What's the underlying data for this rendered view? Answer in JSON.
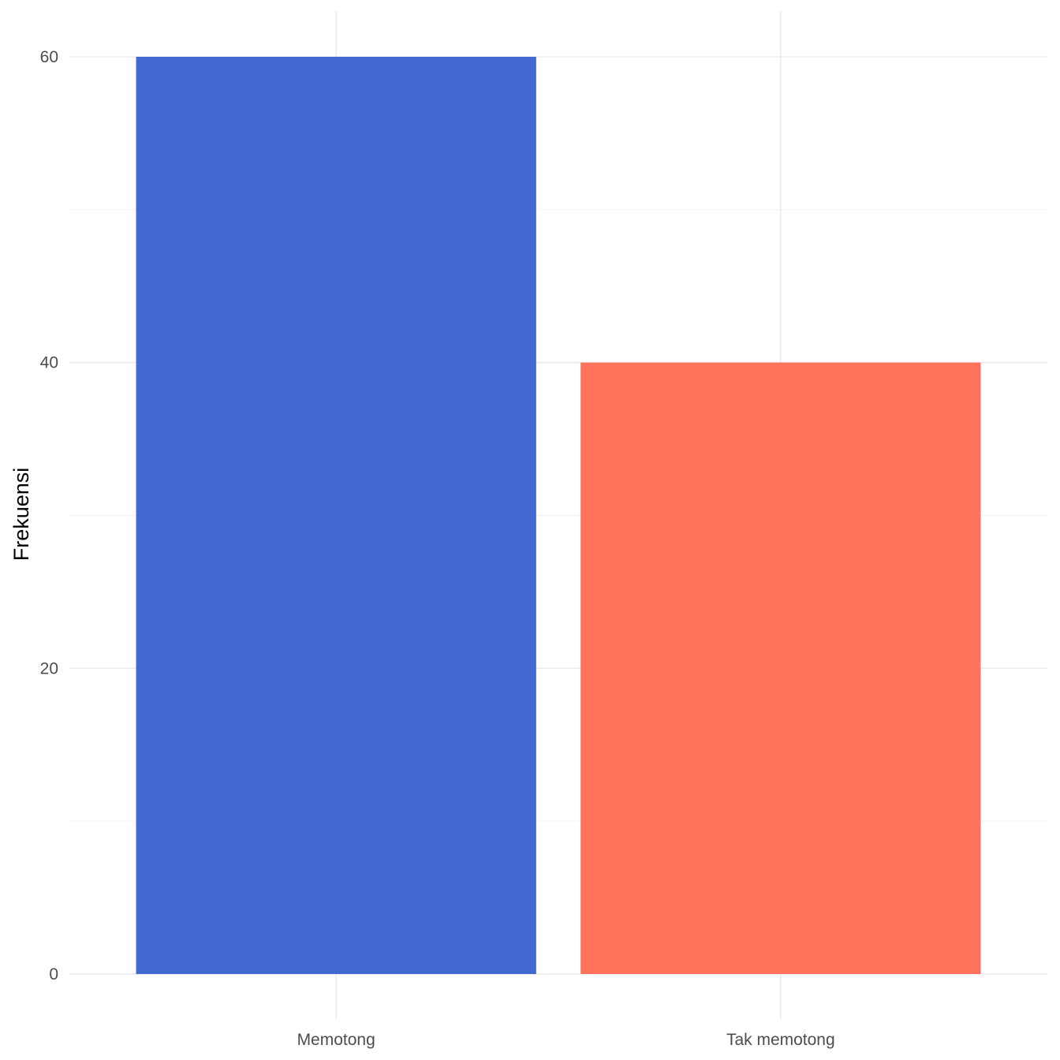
{
  "chart_data": {
    "type": "bar",
    "title": "",
    "xlabel": "",
    "ylabel": "Frekuensi",
    "categories": [
      "Memotong",
      "Tak memotong"
    ],
    "values": [
      60,
      40
    ],
    "colors": [
      "#4169D1",
      "#FF735C"
    ],
    "ylim": [
      0,
      60
    ],
    "yticks": [
      0,
      20,
      40,
      60
    ],
    "y_minor_ticks": [
      10,
      30,
      50
    ],
    "grid": true,
    "legend": "none",
    "background": "#ffffff",
    "grid_color": "#ebebeb"
  }
}
